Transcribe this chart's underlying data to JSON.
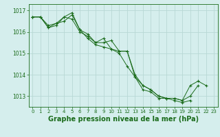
{
  "background_color": "#d5eeed",
  "grid_color": "#b8d8d5",
  "line_color": "#1a6b1a",
  "marker_color": "#1a6b1a",
  "xlabel": "Graphe pression niveau de la mer (hPa)",
  "xlabel_fontsize": 7,
  "tick_fontsize": 5.5,
  "ylim": [
    1012.5,
    1017.3
  ],
  "xlim": [
    -0.5,
    23.5
  ],
  "yticks": [
    1013,
    1014,
    1015,
    1016,
    1017
  ],
  "xticks": [
    0,
    1,
    2,
    3,
    4,
    5,
    6,
    7,
    8,
    9,
    10,
    11,
    12,
    13,
    14,
    15,
    16,
    17,
    18,
    19,
    20,
    21,
    22,
    23
  ],
  "series": [
    [
      1016.7,
      1016.7,
      1016.3,
      1016.4,
      1016.5,
      1016.8,
      1016.1,
      1015.7,
      1015.4,
      1015.3,
      1015.2,
      1015.0,
      1014.4,
      1013.9,
      1013.5,
      1013.3,
      1013.0,
      1012.9,
      1012.9,
      1012.8,
      1013.0,
      1013.5,
      null,
      null
    ],
    [
      1016.7,
      1016.7,
      1016.2,
      1016.3,
      1016.7,
      1016.6,
      1016.0,
      1015.8,
      1015.5,
      1015.7,
      1015.2,
      1015.1,
      1015.1,
      1013.9,
      1013.3,
      1013.2,
      1012.9,
      1012.9,
      1012.8,
      1012.7,
      1012.8,
      null,
      null,
      null
    ],
    [
      1016.7,
      1016.7,
      1016.2,
      1016.4,
      1016.7,
      1016.9,
      1016.1,
      1015.9,
      1015.5,
      1015.5,
      1015.6,
      1015.1,
      1015.1,
      1014.0,
      1013.5,
      1013.3,
      1013.0,
      1012.9,
      1012.9,
      1012.8,
      1013.5,
      1013.7,
      1013.5,
      null
    ]
  ]
}
